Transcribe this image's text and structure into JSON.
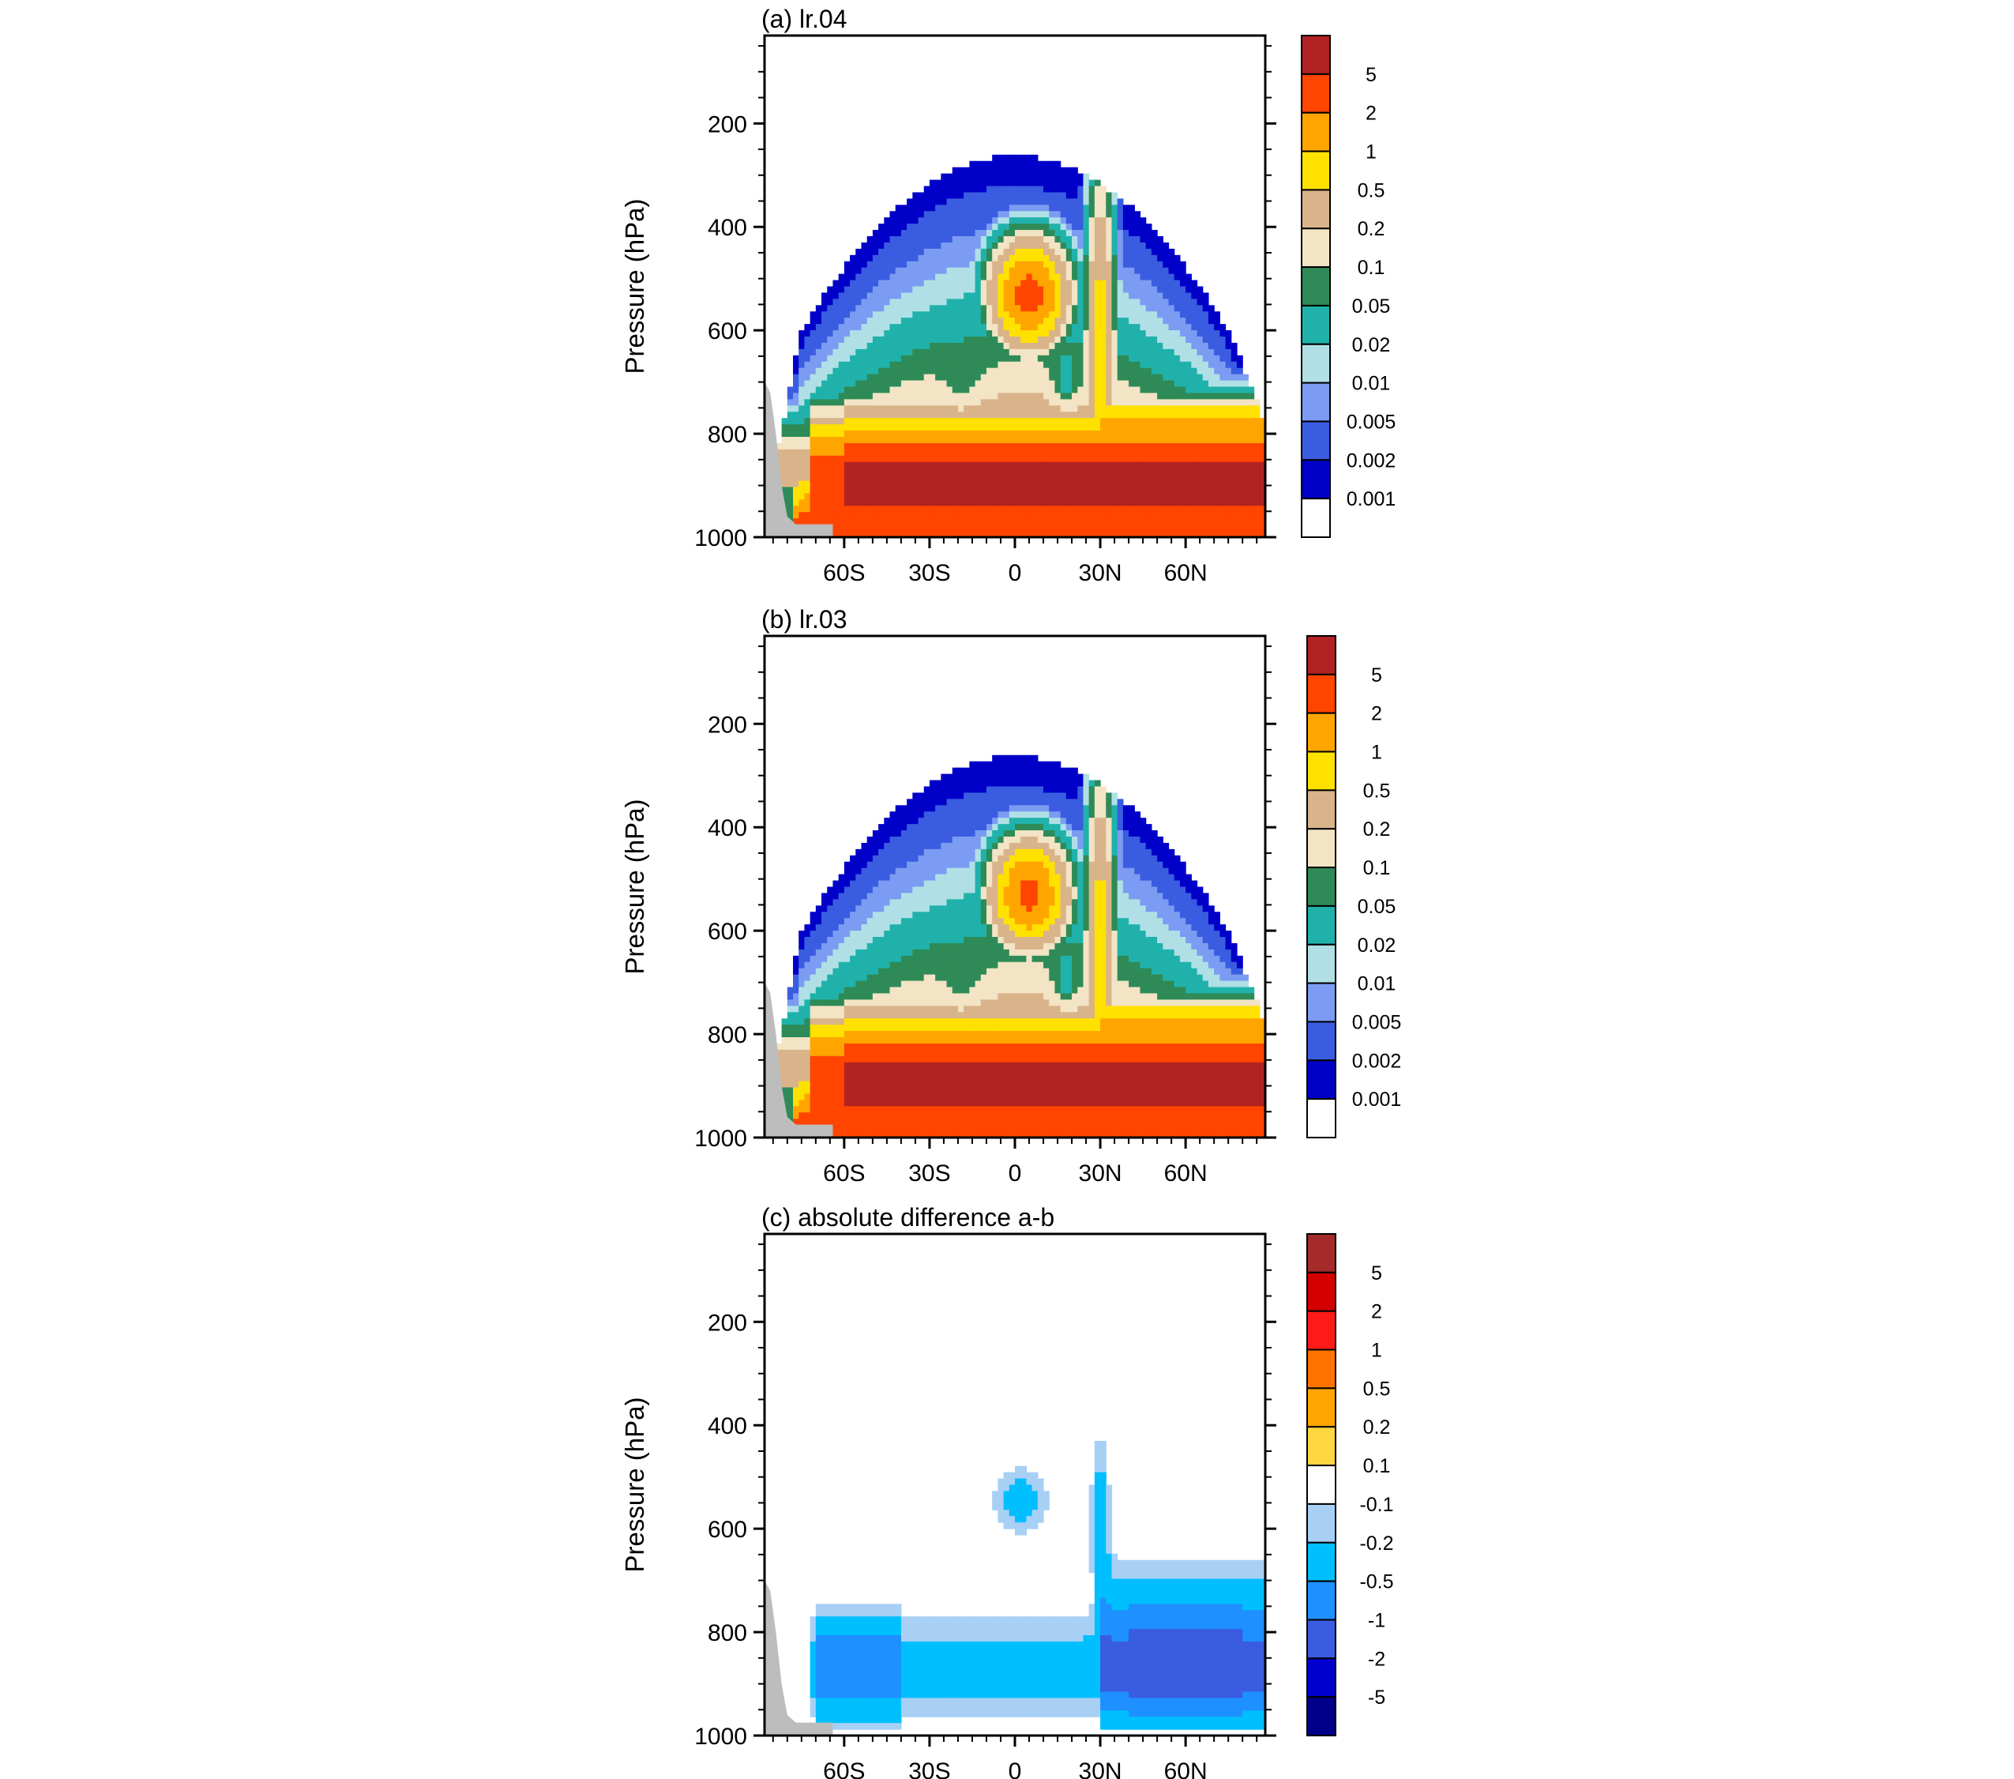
{
  "chart_data": [
    {
      "type": "heatmap",
      "title": "(a) lr.04",
      "ylabel": "Pressure (hPa)",
      "xlabel": "",
      "x_ticks": [
        "60S",
        "30S",
        "0",
        "30N",
        "60N"
      ],
      "x_tick_values": [
        -60,
        -30,
        0,
        30,
        60
      ],
      "xlim": [
        -88,
        88
      ],
      "y_ticks": [
        "200",
        "400",
        "600",
        "800",
        "1000"
      ],
      "y_tick_values": [
        200,
        400,
        600,
        800,
        1000
      ],
      "ylim": [
        1000,
        30
      ],
      "colorbar": {
        "labels": [
          "5",
          "2",
          "1",
          "0.5",
          "0.2",
          "0.1",
          "0.05",
          "0.02",
          "0.01",
          "0.005",
          "0.002",
          "0.001"
        ],
        "colors": [
          "#B22222",
          "#FF4500",
          "#FFA500",
          "#FFE100",
          "#D9B48A",
          "#F2E4C4",
          "#2E8B57",
          "#20B2AA",
          "#B0E0E6",
          "#7B9CF2",
          "#3A5CE0",
          "#0000C8",
          "#FFFFFF"
        ]
      },
      "levels": [
        0.001,
        0.002,
        0.005,
        0.01,
        0.02,
        0.05,
        0.1,
        0.2,
        0.5,
        1,
        2,
        5
      ],
      "profile_top_hPa": {
        "x": [
          -86,
          -80,
          -70,
          -60,
          -50,
          -40,
          -30,
          -20,
          -10,
          0,
          10,
          20,
          25,
          30,
          40,
          50,
          60,
          70,
          80,
          86
        ],
        "top": [
          660,
          600,
          500,
          440,
          390,
          350,
          320,
          295,
          275,
          265,
          262,
          268,
          275,
          285,
          320,
          370,
          420,
          470,
          510,
          540
        ]
      }
    },
    {
      "type": "heatmap",
      "title": "(b) lr.03",
      "ylabel": "Pressure (hPa)",
      "xlabel": "",
      "x_ticks": [
        "60S",
        "30S",
        "0",
        "30N",
        "60N"
      ],
      "x_tick_values": [
        -60,
        -30,
        0,
        30,
        60
      ],
      "xlim": [
        -88,
        88
      ],
      "y_ticks": [
        "200",
        "400",
        "600",
        "800",
        "1000"
      ],
      "y_tick_values": [
        200,
        400,
        600,
        800,
        1000
      ],
      "ylim": [
        1000,
        30
      ],
      "colorbar": {
        "labels": [
          "5",
          "2",
          "1",
          "0.5",
          "0.2",
          "0.1",
          "0.05",
          "0.02",
          "0.01",
          "0.005",
          "0.002",
          "0.001"
        ],
        "colors": [
          "#B22222",
          "#FF4500",
          "#FFA500",
          "#FFE100",
          "#D9B48A",
          "#F2E4C4",
          "#2E8B57",
          "#20B2AA",
          "#B0E0E6",
          "#7B9CF2",
          "#3A5CE0",
          "#0000C8",
          "#FFFFFF"
        ]
      },
      "levels": [
        0.001,
        0.002,
        0.005,
        0.01,
        0.02,
        0.05,
        0.1,
        0.2,
        0.5,
        1,
        2,
        5
      ]
    },
    {
      "type": "heatmap",
      "title": "(c) absolute difference a-b",
      "ylabel": "Pressure (hPa)",
      "xlabel": "",
      "x_ticks": [
        "60S",
        "30S",
        "0",
        "30N",
        "60N"
      ],
      "x_tick_values": [
        -60,
        -30,
        0,
        30,
        60
      ],
      "xlim": [
        -88,
        88
      ],
      "y_ticks": [
        "200",
        "400",
        "600",
        "800",
        "1000"
      ],
      "y_tick_values": [
        200,
        400,
        600,
        800,
        1000
      ],
      "ylim": [
        1000,
        30
      ],
      "colorbar": {
        "labels": [
          "5",
          "2",
          "1",
          "0.5",
          "0.2",
          "0.1",
          "-0.1",
          "-0.2",
          "-0.5",
          "-1",
          "-2",
          "-5"
        ],
        "colors": [
          "#A52A2A",
          "#D40000",
          "#FF1A1A",
          "#FF7300",
          "#FFA500",
          "#FFD740",
          "#FFFFFF",
          "#A8D0F5",
          "#00BFFF",
          "#1E90FF",
          "#3A5CE0",
          "#0000D0",
          "#00008B"
        ]
      },
      "levels": [
        -5,
        -2,
        -1,
        -0.5,
        -0.2,
        -0.1,
        0.1,
        0.2,
        0.5,
        1,
        2,
        5
      ]
    }
  ]
}
